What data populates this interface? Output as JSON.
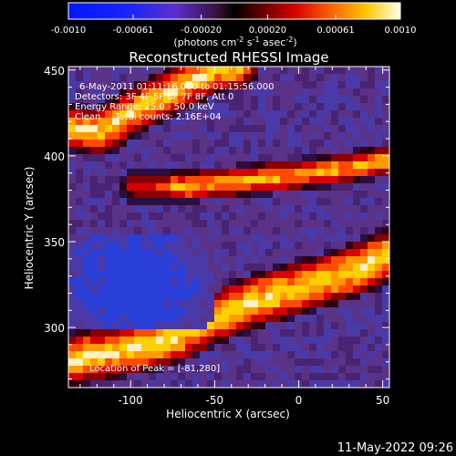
{
  "colorbar": {
    "ticks": [
      "-0.0010",
      "-0.00061",
      "-0.00020",
      "0.00020",
      "0.00061",
      "0.0010"
    ],
    "tick_values": [
      -0.001,
      -0.00061,
      -0.0002,
      0.0002,
      0.00061,
      0.001
    ],
    "range": [
      -0.001,
      0.001
    ],
    "unit_label": "(photons cm",
    "unit_exp1": "-2",
    "unit_mid": " s",
    "unit_exp2": "-1",
    "unit_mid2": " asec",
    "unit_exp3": "-2",
    "unit_end": ")"
  },
  "chart_data": {
    "type": "heatmap",
    "title": "Reconstructed RHESSI Image",
    "xlabel": "Heliocentric X (arcsec)",
    "ylabel": "Heliocentric Y (arcsec)",
    "xlim": [
      -137,
      54
    ],
    "ylim": [
      265,
      452
    ],
    "xticks": [
      -100,
      -50,
      0,
      50
    ],
    "yticks": [
      300,
      350,
      400,
      450
    ],
    "colormap": "rainbow-style: blue-purple (negative) to red-yellow-white (positive)",
    "annotations": {
      "line1": "6-May-2011 01:11:16.000 to 01:15:56.000",
      "line2": "Detectors: 3F 4F 5F 6F 7F 8F, Att 0",
      "line3": "Energy Range: 25.0 - 50.0 keV",
      "line4": "Clean     Total counts: 2.16E+04",
      "peak": "Location of Peak = [-81,280]"
    },
    "peak": [
      -81,
      280
    ],
    "bright_bands": [
      {
        "region": "upper-left",
        "x_range": [
          -137,
          -80
        ],
        "y_range": [
          395,
          430
        ]
      },
      {
        "region": "middle",
        "x_range": [
          -60,
          54
        ],
        "y_range": [
          370,
          405
        ]
      },
      {
        "region": "lower",
        "x_range": [
          -137,
          54
        ],
        "y_range": [
          268,
          340
        ]
      }
    ]
  },
  "footer": {
    "timestamp": "11-May-2022 09:26"
  }
}
